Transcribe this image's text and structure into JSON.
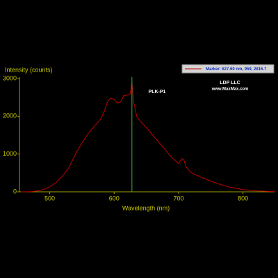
{
  "chart_data": {
    "type": "line",
    "x_label": "Wavelength (nm)",
    "y_label": "Intensity (counts)",
    "annotations": [
      "PLK-P1",
      "LDP LLC",
      "www.MaxMax.com"
    ],
    "marker": {
      "label": "Marker: 627.60 nm, 959, 2816.7",
      "x": 627.6,
      "color": "#3cb043"
    },
    "x": [
      455,
      470,
      480,
      490,
      500,
      510,
      520,
      530,
      540,
      550,
      560,
      570,
      580,
      585,
      590,
      595,
      600,
      605,
      610,
      615,
      620,
      625,
      627.6,
      630,
      635,
      640,
      650,
      660,
      670,
      680,
      690,
      700,
      705,
      708,
      712,
      720,
      740,
      760,
      780,
      800,
      820,
      850
    ],
    "series": [
      {
        "name": "PLK-P1",
        "color": "#c00000",
        "values": [
          0,
          5,
          20,
          60,
          130,
          250,
          420,
          650,
          1000,
          1300,
          1550,
          1750,
          1950,
          2150,
          2400,
          2480,
          2450,
          2350,
          2380,
          2550,
          2560,
          2600,
          2900,
          2400,
          2000,
          1880,
          1700,
          1500,
          1300,
          1100,
          900,
          750,
          880,
          850,
          650,
          500,
          350,
          220,
          120,
          60,
          25,
          5
        ]
      }
    ],
    "xlim": [
      453,
      850
    ],
    "ylim": [
      0,
      3000
    ],
    "xticks": [
      500,
      600,
      700,
      800
    ],
    "yticks": [
      0,
      1000,
      2000,
      3000
    ]
  }
}
